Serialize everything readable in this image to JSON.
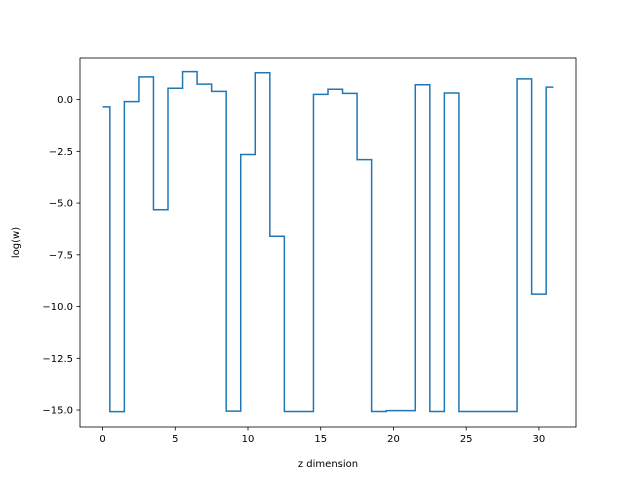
{
  "chart_data": {
    "type": "line",
    "drawstyle": "steps-mid",
    "xlabel": "z dimension",
    "ylabel": "log(w)",
    "xlim": [
      -1.55,
      32.55
    ],
    "ylim": [
      -15.82,
      2.01
    ],
    "xticks": [
      0,
      5,
      10,
      15,
      20,
      25,
      30
    ],
    "yticks": [
      0.0,
      -2.5,
      -5.0,
      -7.5,
      -10.0,
      -12.5,
      -15.0
    ],
    "xtick_labels": [
      "0",
      "5",
      "10",
      "15",
      "20",
      "25",
      "30"
    ],
    "ytick_labels": [
      "0.0",
      "−2.5",
      "−5.0",
      "−7.5",
      "−10.0",
      "−12.5",
      "−15.0"
    ],
    "grid": false,
    "series": [
      {
        "color": "#1f77b4",
        "x": [
          0,
          1,
          2,
          3,
          4,
          5,
          6,
          7,
          8,
          9,
          10,
          11,
          12,
          13,
          14,
          15,
          16,
          17,
          18,
          19,
          20,
          21,
          22,
          23,
          24,
          25,
          26,
          27,
          28,
          29,
          30,
          31
        ],
        "y": [
          -0.35,
          -15.08,
          -0.1,
          1.1,
          -5.32,
          0.55,
          1.35,
          0.75,
          0.4,
          -15.05,
          -2.65,
          1.3,
          -6.6,
          -15.07,
          -15.07,
          0.25,
          0.5,
          0.3,
          -2.9,
          -15.07,
          -15.03,
          -15.03,
          0.72,
          -15.07,
          0.32,
          -15.07,
          -15.07,
          -15.07,
          -15.07,
          1.0,
          -9.4,
          0.6
        ]
      }
    ]
  }
}
